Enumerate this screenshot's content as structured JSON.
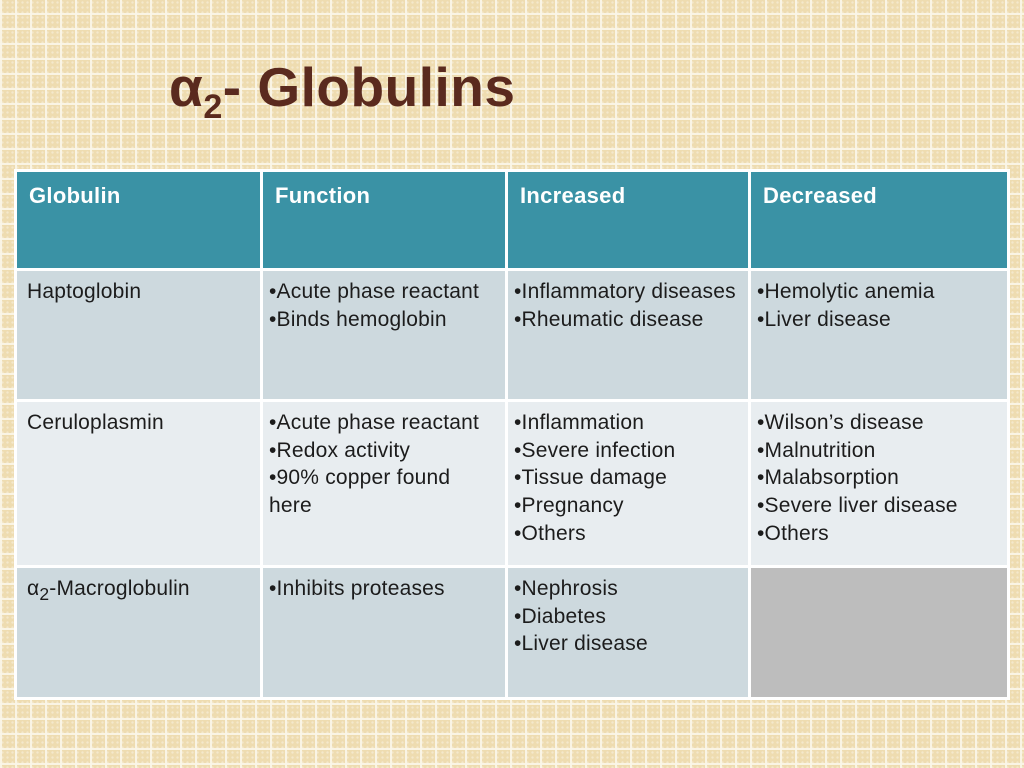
{
  "slide": {
    "title": {
      "alpha": "α",
      "subscript": "2",
      "rest": "- Globulins"
    },
    "colors": {
      "background_base": "#eedcb0",
      "grid_line": "#faf6e8",
      "title_text": "#5a2a1e",
      "header_bg": "#3a92a5",
      "header_text": "#ffffff",
      "row_bg_a": "#cdd9de",
      "row_bg_b": "#e8edf0",
      "empty_cell_bg": "#bdbdbd",
      "body_text": "#1c1c1c",
      "table_border": "#ffffff"
    }
  },
  "table": {
    "headers": [
      "Globulin",
      "Function",
      "Increased",
      "Decreased"
    ],
    "rows": [
      {
        "globulin": "Haptoglobin",
        "function": [
          "•Acute phase reactant",
          "•Binds hemoglobin"
        ],
        "increased": [
          "•Inflammatory diseases",
          "•Rheumatic disease"
        ],
        "decreased": [
          "•Hemolytic anemia",
          "•Liver disease"
        ]
      },
      {
        "globulin": "Ceruloplasmin",
        "function": [
          "•Acute phase reactant",
          "•Redox activity",
          "•90% copper found here"
        ],
        "increased": [
          "•Inflammation",
          "•Severe infection",
          "•Tissue damage",
          "•Pregnancy",
          "•Others"
        ],
        "decreased": [
          "•Wilson’s disease",
          "•Malnutrition",
          "•Malabsorption",
          "•Severe liver disease",
          "•Others"
        ]
      },
      {
        "globulin_parts": {
          "pre": "α",
          "sub": "2",
          "post": "-Macroglobulin"
        },
        "function": [
          "•Inhibits proteases"
        ],
        "increased": [
          "•Nephrosis",
          "•Diabetes",
          "•Liver disease"
        ],
        "decreased": []
      }
    ]
  }
}
